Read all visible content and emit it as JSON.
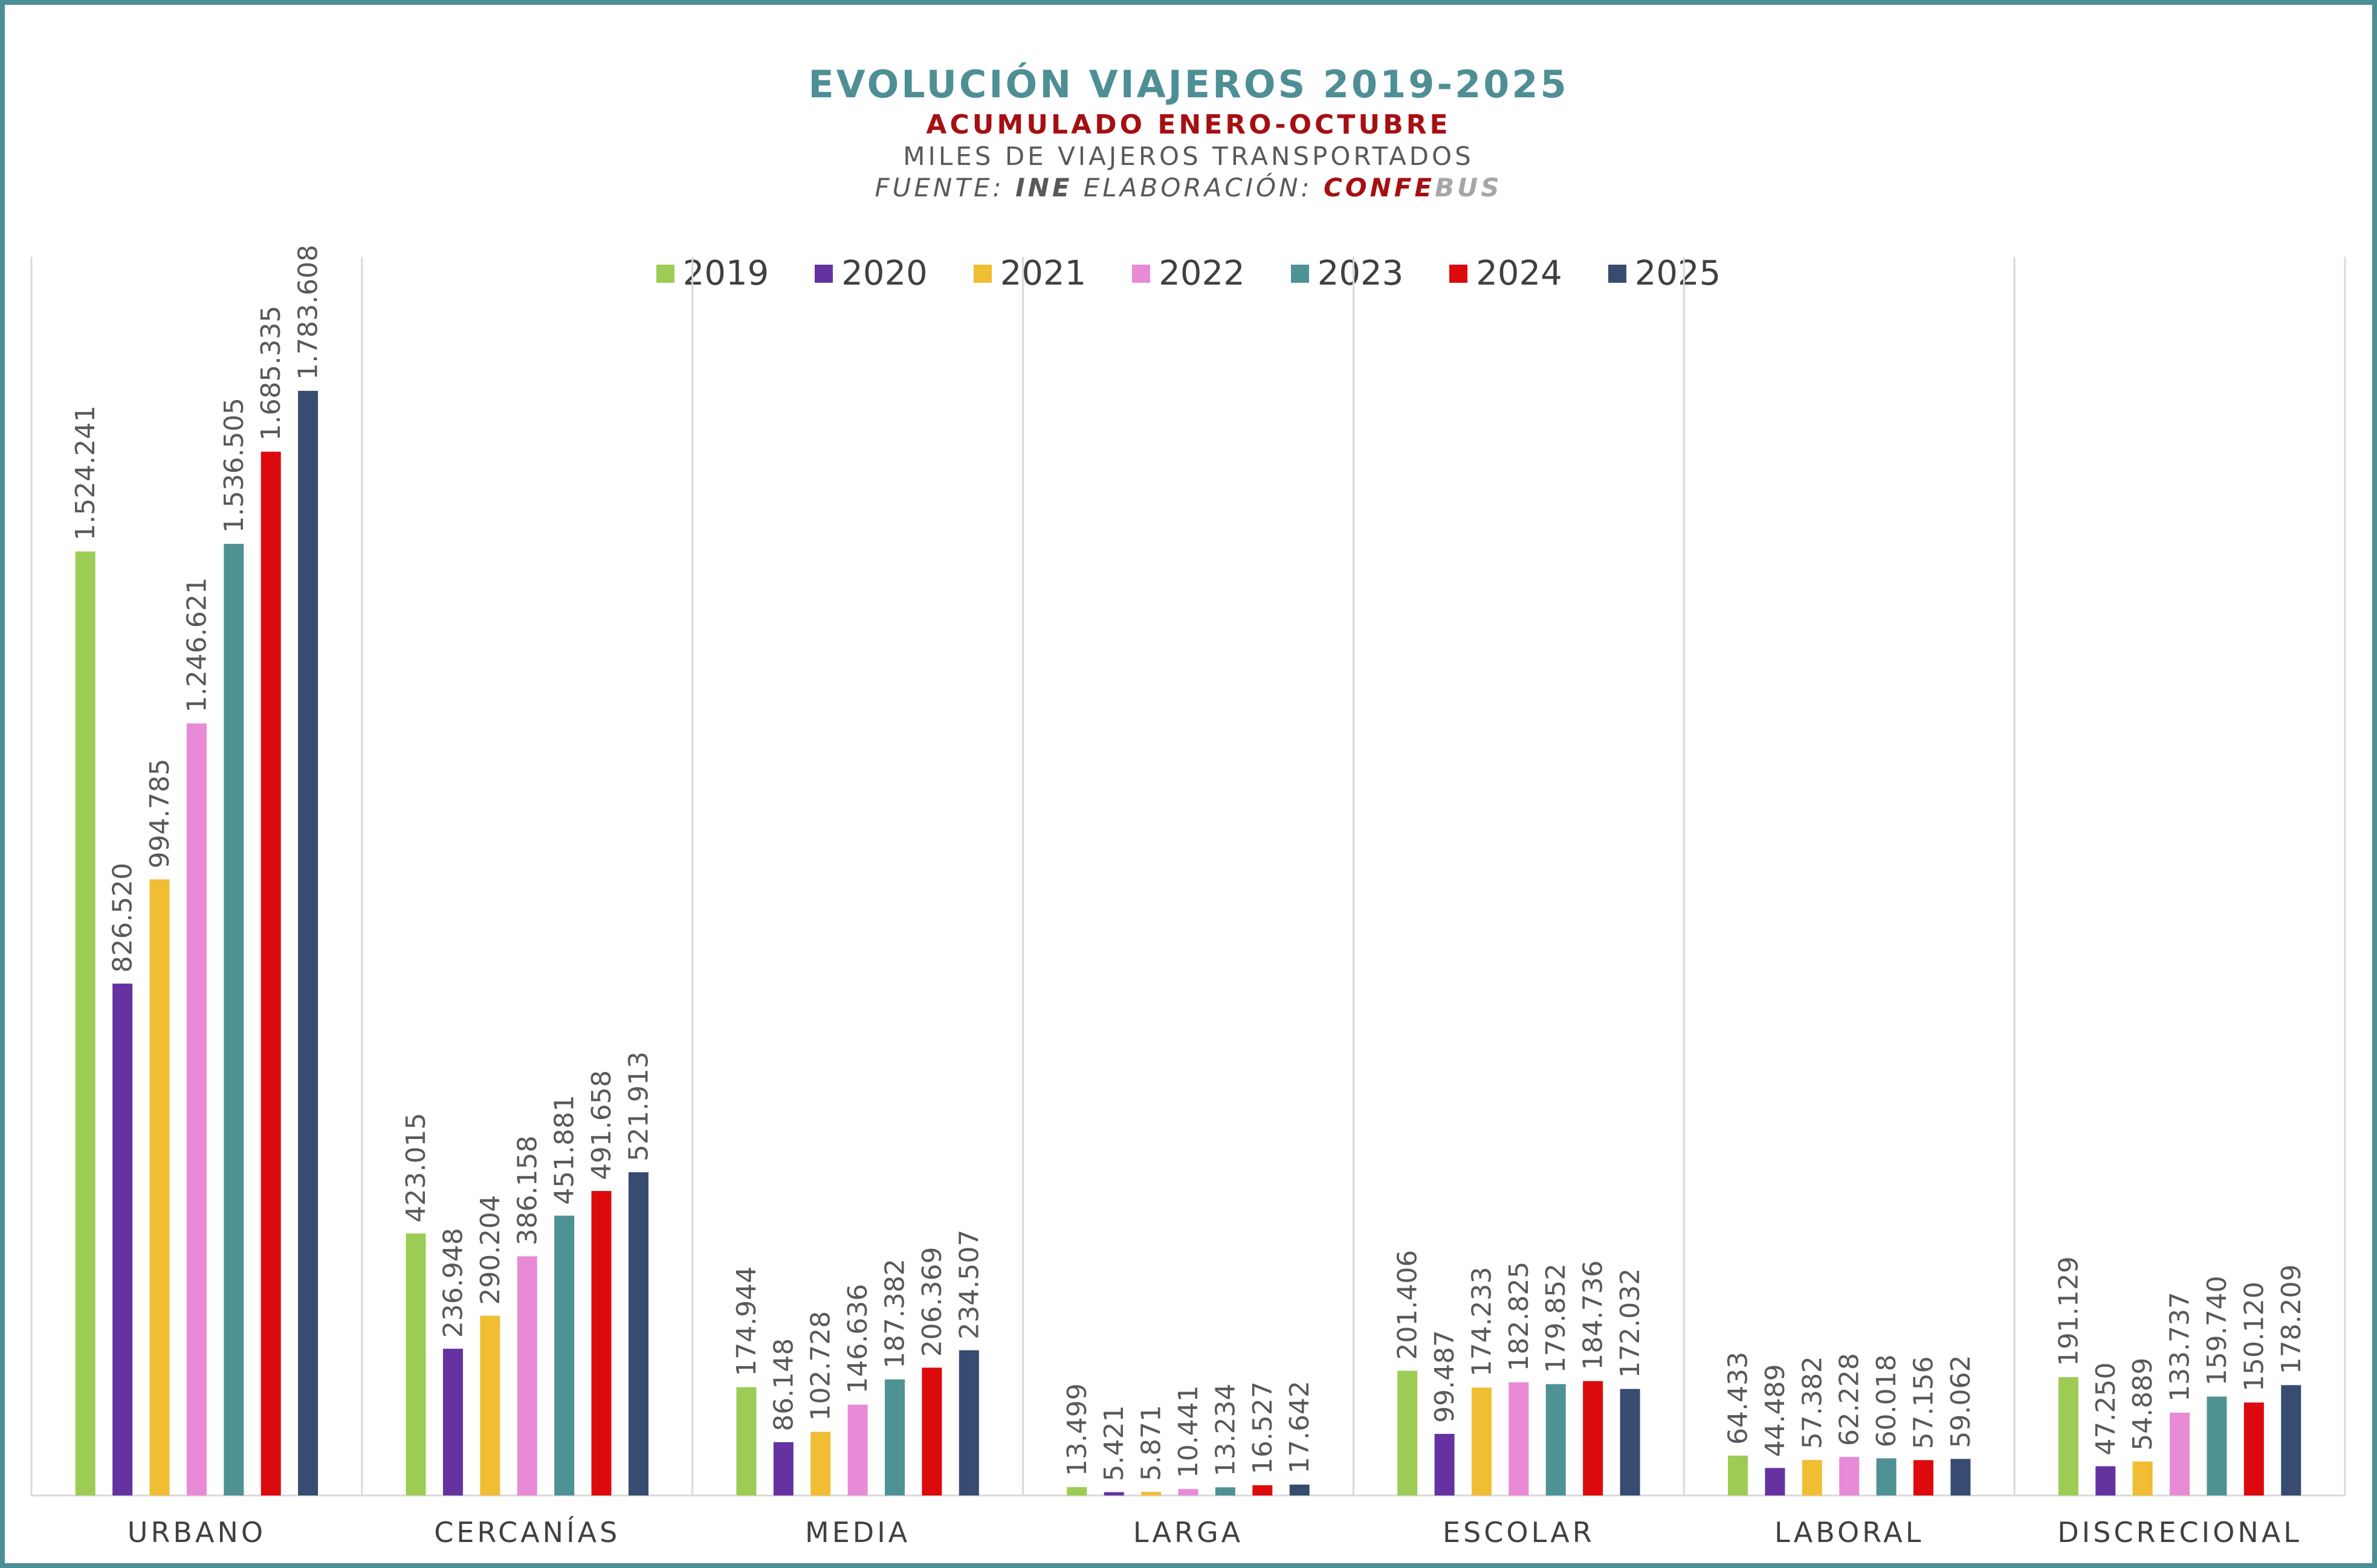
{
  "header": {
    "title": "EVOLUCIÓN VIAJEROS 2019-2025",
    "subtitle": "ACUMULADO ENERO-OCTUBRE",
    "subtitle2": "MILES DE VIAJEROS TRANSPORTADOS",
    "source_prefix": "FUENTE:",
    "source_ine": "INE",
    "source_mid": "ELABORACIÓN:",
    "source_conf": "CONFE",
    "source_bus": "BUS"
  },
  "colors": {
    "frame": "#4b8f94",
    "title": "#4e8f95",
    "subtitle": "#a60f12",
    "gridline": "#d9d9d9",
    "axis_text": "#404040",
    "label_text": "#595959"
  },
  "chart_data": {
    "type": "bar",
    "title": "EVOLUCIÓN VIAJEROS 2019-2025",
    "subtitle": "ACUMULADO ENERO-OCTUBRE",
    "ylabel": "",
    "xlabel": "",
    "ylim": [
      0,
      2000000
    ],
    "grid": "vertical category separators",
    "legend": "top-center",
    "categories": [
      "URBANO",
      "CERCANÍAS",
      "MEDIA",
      "LARGA",
      "ESCOLAR",
      "LABORAL",
      "DISCRECIONAL"
    ],
    "series": [
      {
        "name": "2019",
        "color": "#9dcc55",
        "values": [
          1524241,
          423015,
          174944,
          13499,
          201406,
          64433,
          191129
        ],
        "labels": [
          "1.524.241",
          "423.015",
          "174.944",
          "13.499",
          "201.406",
          "64.433",
          "191.129"
        ]
      },
      {
        "name": "2020",
        "color": "#6433a0",
        "values": [
          826520,
          236948,
          86148,
          5421,
          99487,
          44489,
          47250
        ],
        "labels": [
          "826.520",
          "236.948",
          "86.148",
          "5.421",
          "99.487",
          "44.489",
          "47.250"
        ]
      },
      {
        "name": "2021",
        "color": "#f0bd33",
        "values": [
          994785,
          290204,
          102728,
          5871,
          174233,
          57382,
          54889
        ],
        "labels": [
          "994.785",
          "290.204",
          "102.728",
          "5.871",
          "174.233",
          "57.382",
          "54.889"
        ]
      },
      {
        "name": "2022",
        "color": "#e88ad6",
        "values": [
          1246621,
          386158,
          146636,
          10441,
          182825,
          62228,
          133737
        ],
        "labels": [
          "1.246.621",
          "386.158",
          "146.636",
          "10.441",
          "182.825",
          "62.228",
          "133.737"
        ]
      },
      {
        "name": "2023",
        "color": "#4e9294",
        "values": [
          1536505,
          451881,
          187382,
          13234,
          179852,
          60018,
          159740
        ],
        "labels": [
          "1.536.505",
          "451.881",
          "187.382",
          "13.234",
          "179.852",
          "60.018",
          "159.740"
        ]
      },
      {
        "name": "2024",
        "color": "#dd0a0d",
        "values": [
          1685335,
          491658,
          206369,
          16527,
          184736,
          57156,
          150120
        ],
        "labels": [
          "1.685.335",
          "491.658",
          "206.369",
          "16.527",
          "184.736",
          "57.156",
          "150.120"
        ]
      },
      {
        "name": "2025",
        "color": "#374c70",
        "values": [
          1783608,
          521913,
          234507,
          17642,
          172032,
          59062,
          178209
        ],
        "labels": [
          "1.783.608",
          "521.913",
          "234.507",
          "17.642",
          "172.032",
          "59.062",
          "178.209"
        ]
      }
    ]
  }
}
